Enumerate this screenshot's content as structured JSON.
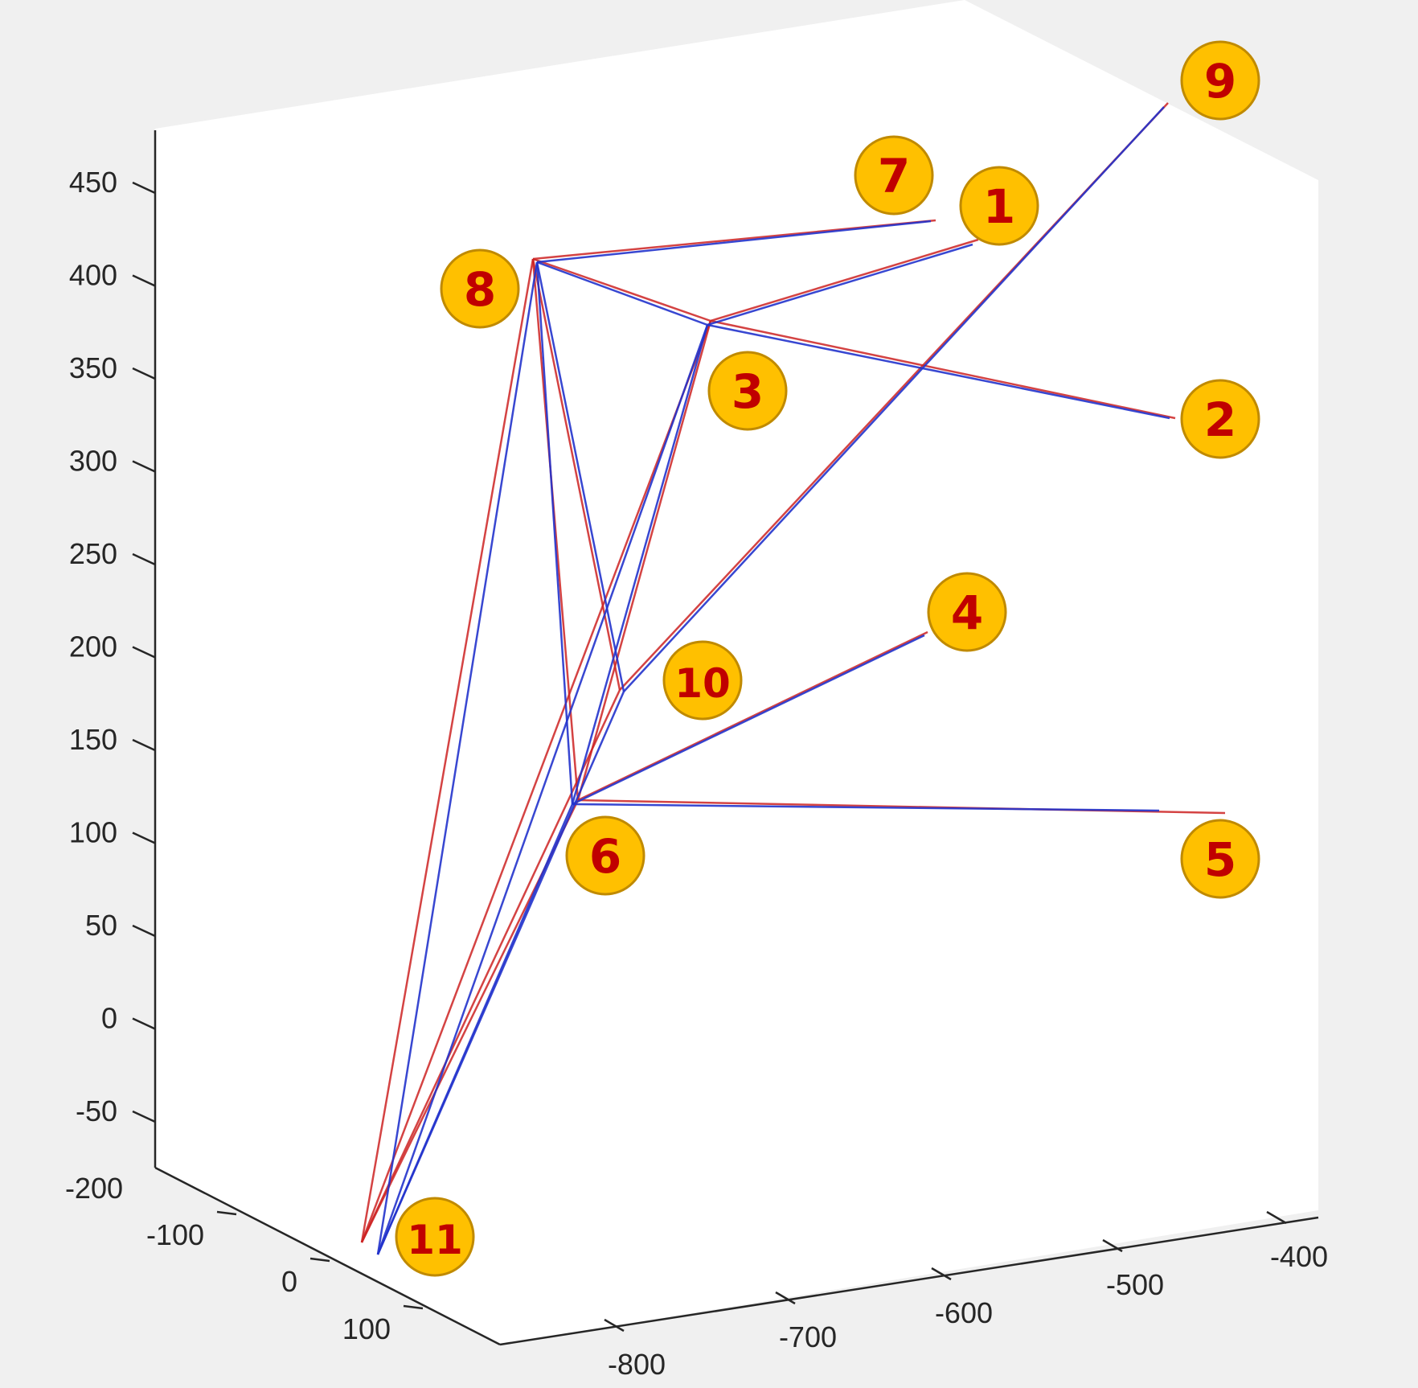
{
  "chart_data": {
    "type": "line",
    "dimensions": "3d",
    "title": "",
    "xlabel": "",
    "ylabel": "",
    "zlabel": "",
    "grid": false,
    "axes": {
      "x_ticks": [
        "-800",
        "-700",
        "-600",
        "-500",
        "-400"
      ],
      "y_ticks": [
        "-200",
        "-100",
        "0",
        "100"
      ],
      "z_ticks": [
        "450",
        "400",
        "350",
        "300",
        "250",
        "200",
        "150",
        "100",
        "50",
        "0",
        "-50"
      ]
    },
    "series_colors": {
      "series_a": "#cc2222",
      "series_b": "#2233cc"
    },
    "nodes": [
      {
        "id": "1",
        "label": "1"
      },
      {
        "id": "2",
        "label": "2"
      },
      {
        "id": "3",
        "label": "3"
      },
      {
        "id": "4",
        "label": "4"
      },
      {
        "id": "5",
        "label": "5"
      },
      {
        "id": "6",
        "label": "6"
      },
      {
        "id": "7",
        "label": "7"
      },
      {
        "id": "8",
        "label": "8"
      },
      {
        "id": "9",
        "label": "9"
      },
      {
        "id": "10",
        "label": "10"
      },
      {
        "id": "11",
        "label": "11"
      }
    ],
    "edges": [
      [
        "8",
        "7"
      ],
      [
        "8",
        "3"
      ],
      [
        "8",
        "6"
      ],
      [
        "8",
        "10"
      ],
      [
        "8",
        "11"
      ],
      [
        "3",
        "1"
      ],
      [
        "3",
        "2"
      ],
      [
        "3",
        "6"
      ],
      [
        "3",
        "11"
      ],
      [
        "6",
        "4"
      ],
      [
        "6",
        "5"
      ],
      [
        "6",
        "11"
      ],
      [
        "10",
        "9"
      ],
      [
        "10",
        "11"
      ]
    ],
    "badge_color": "#ffc000",
    "badge_text_color": "#c00000"
  }
}
